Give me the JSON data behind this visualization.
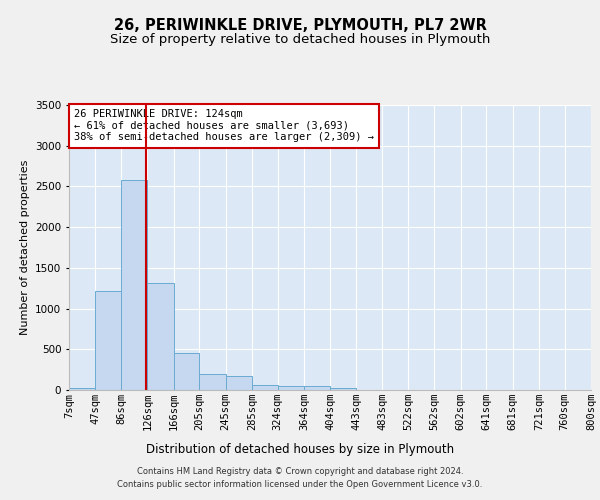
{
  "title": "26, PERIWINKLE DRIVE, PLYMOUTH, PL7 2WR",
  "subtitle": "Size of property relative to detached houses in Plymouth",
  "xlabel": "Distribution of detached houses by size in Plymouth",
  "ylabel": "Number of detached properties",
  "footer_line1": "Contains HM Land Registry data © Crown copyright and database right 2024.",
  "footer_line2": "Contains public sector information licensed under the Open Government Licence v3.0.",
  "annotation_line1": "26 PERIWINKLE DRIVE: 124sqm",
  "annotation_line2": "← 61% of detached houses are smaller (3,693)",
  "annotation_line3": "38% of semi-detached houses are larger (2,309) →",
  "property_size": 124,
  "bar_color": "#c5d8f0",
  "bar_edge_color": "#6aabd2",
  "vline_color": "#cc0000",
  "background_color": "#dce8f5",
  "fig_background_color": "#f0f0f0",
  "annotation_box_color": "#ffffff",
  "annotation_box_edge_color": "#cc0000",
  "bins": [
    7,
    47,
    86,
    126,
    166,
    205,
    245,
    285,
    324,
    364,
    404,
    443,
    483,
    522,
    562,
    602,
    641,
    681,
    721,
    760,
    800
  ],
  "counts": [
    25,
    1220,
    2580,
    1310,
    460,
    195,
    170,
    65,
    55,
    45,
    20,
    5,
    5,
    0,
    0,
    0,
    0,
    0,
    0,
    0
  ],
  "ylim": [
    0,
    3500
  ],
  "yticks": [
    0,
    500,
    1000,
    1500,
    2000,
    2500,
    3000,
    3500
  ],
  "grid_color": "#ffffff",
  "title_fontsize": 10.5,
  "subtitle_fontsize": 9.5,
  "xlabel_fontsize": 8.5,
  "ylabel_fontsize": 8,
  "tick_fontsize": 7.5,
  "annotation_fontsize": 7.5,
  "footer_fontsize": 6
}
